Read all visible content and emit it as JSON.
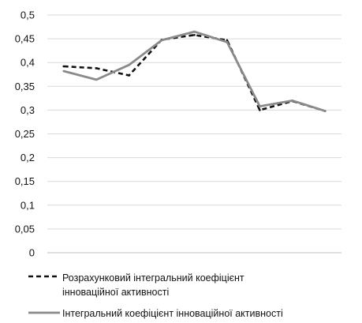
{
  "chart_data": {
    "type": "line",
    "title": "",
    "xlabel": "",
    "ylabel": "",
    "ylim": [
      0,
      0.5
    ],
    "grid": true,
    "legend_position": "bottom",
    "x": [
      1,
      2,
      3,
      4,
      5,
      6,
      7,
      8,
      9
    ],
    "y_ticks": [
      "0",
      "0,05",
      "0,1",
      "0,15",
      "0,2",
      "0,25",
      "0,3",
      "0,35",
      "0,4",
      "0,45",
      "0,5"
    ],
    "series": [
      {
        "name": "Розрахунковий інтегральний коефіцієнт інноваційної активності",
        "legend_lines": [
          "Розрахунковий інтегральний коефіцієнт",
          "інноваційної активності"
        ],
        "style": "dashed",
        "color": "#111111",
        "values": [
          0.392,
          0.388,
          0.373,
          0.448,
          0.458,
          0.447,
          0.3,
          0.319,
          0.298
        ]
      },
      {
        "name": "Інтегральний коефіцієнт інноваційної активності",
        "legend_lines": [
          "Інтегральний коефіцієнт інноваційної активності"
        ],
        "style": "solid",
        "color": "#8a8a8a",
        "values": [
          0.382,
          0.364,
          0.395,
          0.447,
          0.465,
          0.443,
          0.308,
          0.32,
          0.298
        ]
      }
    ]
  }
}
